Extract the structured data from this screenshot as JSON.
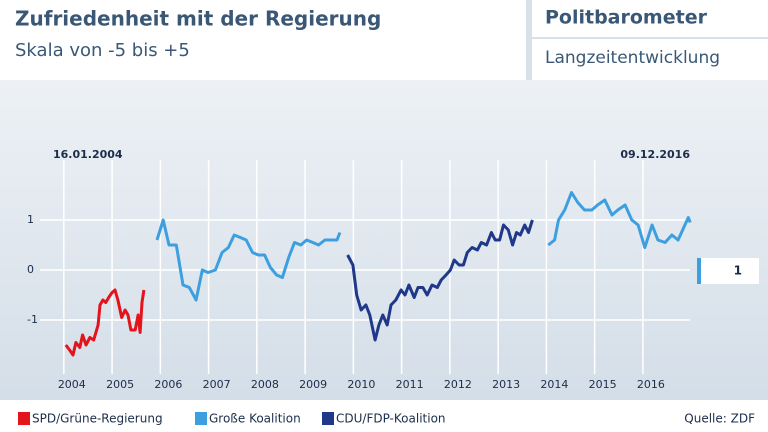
{
  "header": {
    "title": "Zufriedenheit mit der Regierung",
    "subtitle": "Skala von -5 bis +5",
    "brand": "Politbarometer",
    "section": "Langzeitentwicklung"
  },
  "chart_data": {
    "type": "line",
    "start_label": "16.01.2004",
    "end_label": "09.12.2016",
    "xlim": [
      2003.9,
      2017.1
    ],
    "xticks": [
      2004,
      2005,
      2006,
      2007,
      2008,
      2009,
      2010,
      2011,
      2012,
      2013,
      2014,
      2015,
      2016
    ],
    "ylim": [
      -2,
      2.2
    ],
    "yticks": [
      -1,
      0,
      1
    ],
    "grid": true,
    "current_value": 1,
    "series": [
      {
        "name": "SPD/Grüne-Regierung",
        "color": "#e3141c",
        "x": [
          2004.04,
          2004.12,
          2004.19,
          2004.25,
          2004.33,
          2004.39,
          2004.46,
          2004.54,
          2004.62,
          2004.71,
          2004.75,
          2004.81,
          2004.87,
          2004.93,
          2005.0,
          2005.06,
          2005.12,
          2005.2,
          2005.27,
          2005.33,
          2005.39,
          2005.48,
          2005.54,
          2005.58,
          2005.62,
          2005.66
        ],
        "values": [
          -1.5,
          -1.6,
          -1.7,
          -1.45,
          -1.55,
          -1.3,
          -1.5,
          -1.35,
          -1.4,
          -1.1,
          -0.7,
          -0.6,
          -0.65,
          -0.55,
          -0.45,
          -0.4,
          -0.6,
          -0.95,
          -0.8,
          -0.9,
          -1.2,
          -1.2,
          -0.9,
          -1.25,
          -0.65,
          -0.4
        ]
      },
      {
        "name": "Große Koalition",
        "color": "#3d9fe0",
        "x": [
          2005.93,
          2006.06,
          2006.18,
          2006.33,
          2006.47,
          2006.6,
          2006.74,
          2006.87,
          2006.99,
          2007.14,
          2007.28,
          2007.41,
          2007.53,
          2007.66,
          2007.78,
          2007.91,
          2008.03,
          2008.16,
          2008.28,
          2008.41,
          2008.53,
          2008.66,
          2008.78,
          2008.91,
          2009.03,
          2009.16,
          2009.28,
          2009.41,
          2009.53,
          2009.66,
          2009.72,
          null,
          2014.04,
          2014.17,
          2014.25,
          2014.38,
          2014.52,
          2014.65,
          2014.79,
          2014.94,
          2015.06,
          2015.21,
          2015.36,
          2015.48,
          2015.63,
          2015.77,
          2015.9,
          2016.04,
          2016.19,
          2016.31,
          2016.46,
          2016.6,
          2016.73,
          2016.87,
          2016.94,
          2016.98
        ],
        "values": [
          0.6,
          1.0,
          0.5,
          0.5,
          -0.3,
          -0.35,
          -0.6,
          0.0,
          -0.05,
          0.0,
          0.35,
          0.45,
          0.7,
          0.65,
          0.6,
          0.35,
          0.3,
          0.3,
          0.05,
          -0.1,
          -0.15,
          0.25,
          0.55,
          0.5,
          0.6,
          0.55,
          0.5,
          0.6,
          0.6,
          0.6,
          0.75,
          null,
          0.5,
          0.6,
          1.0,
          1.2,
          1.55,
          1.35,
          1.2,
          1.2,
          1.3,
          1.4,
          1.1,
          1.2,
          1.3,
          1.0,
          0.9,
          0.45,
          0.9,
          0.6,
          0.55,
          0.7,
          0.6,
          0.9,
          1.05,
          0.95
        ]
      },
      {
        "name": "CDU/FDP-Koalition",
        "color": "#1f3889",
        "x": [
          2009.88,
          2009.99,
          2010.07,
          2010.16,
          2010.26,
          2010.34,
          2010.45,
          2010.53,
          2010.61,
          2010.7,
          2010.78,
          2010.88,
          2010.99,
          2011.07,
          2011.15,
          2011.26,
          2011.34,
          2011.44,
          2011.53,
          2011.63,
          2011.74,
          2011.82,
          2011.92,
          2012.01,
          2012.09,
          2012.19,
          2012.28,
          2012.36,
          2012.46,
          2012.57,
          2012.65,
          2012.76,
          2012.86,
          2012.94,
          2013.03,
          2013.11,
          2013.21,
          2013.3,
          2013.38,
          2013.46,
          2013.55,
          2013.63,
          2013.71
        ],
        "values": [
          0.3,
          0.1,
          -0.5,
          -0.8,
          -0.7,
          -0.9,
          -1.4,
          -1.1,
          -0.9,
          -1.1,
          -0.7,
          -0.6,
          -0.4,
          -0.5,
          -0.3,
          -0.55,
          -0.35,
          -0.35,
          -0.5,
          -0.3,
          -0.35,
          -0.2,
          -0.1,
          0.0,
          0.2,
          0.1,
          0.1,
          0.35,
          0.45,
          0.4,
          0.55,
          0.5,
          0.75,
          0.6,
          0.6,
          0.9,
          0.8,
          0.5,
          0.75,
          0.7,
          0.9,
          0.75,
          1.0
        ]
      }
    ]
  },
  "source": "Quelle: ZDF"
}
